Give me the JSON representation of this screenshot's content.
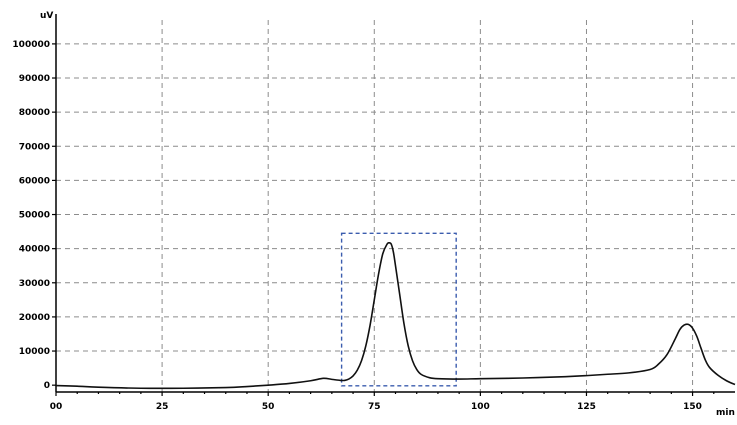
{
  "chart_data": {
    "type": "line",
    "title": "",
    "xlabel": "",
    "ylabel": "",
    "y_unit_label": "uV",
    "x_unit_label": "min",
    "xlim": [
      0,
      160
    ],
    "ylim": [
      -2000,
      107000
    ],
    "x_ticks": [
      0,
      25,
      50,
      75,
      100,
      125,
      150
    ],
    "x_tick_labels": [
      "00",
      "25",
      "50",
      "75",
      "100",
      "125",
      "150"
    ],
    "y_ticks": [
      0,
      10000,
      20000,
      30000,
      40000,
      50000,
      60000,
      70000,
      80000,
      90000,
      100000
    ],
    "y_tick_labels": [
      "0",
      "10000",
      "20000",
      "30000",
      "40000",
      "50000",
      "60000",
      "70000",
      "80000",
      "90000",
      "100000"
    ],
    "grid": true,
    "series": [
      {
        "x": [
          0,
          5,
          10,
          20,
          30,
          40,
          45,
          50,
          55,
          60,
          63,
          65,
          67,
          68,
          69,
          70,
          71,
          72,
          73,
          74,
          75,
          76,
          77,
          78,
          78.5,
          79,
          79.5,
          80,
          81,
          82,
          83,
          84,
          85,
          86,
          88,
          90,
          95,
          100,
          110,
          120,
          125,
          130,
          135,
          140,
          142,
          144,
          146,
          147,
          148,
          149,
          150,
          151,
          152,
          153,
          154,
          156,
          158,
          160
        ],
        "y": [
          -100,
          -300,
          -600,
          -900,
          -900,
          -700,
          -400,
          0,
          500,
          1300,
          2000,
          1700,
          1400,
          1400,
          1800,
          2700,
          4400,
          7200,
          11500,
          17500,
          25000,
          32500,
          38500,
          41300,
          41700,
          41300,
          39000,
          35000,
          26500,
          18000,
          11500,
          7200,
          4600,
          3200,
          2200,
          1900,
          1800,
          1900,
          2100,
          2500,
          2800,
          3200,
          3600,
          4600,
          6200,
          9000,
          13800,
          16300,
          17600,
          17800,
          16700,
          14300,
          10800,
          7400,
          5200,
          2900,
          1300,
          200
        ]
      }
    ],
    "annotations": [
      {
        "type": "region",
        "x_range": [
          67.3,
          94.3
        ],
        "y_range": [
          -200,
          44500
        ]
      }
    ]
  }
}
